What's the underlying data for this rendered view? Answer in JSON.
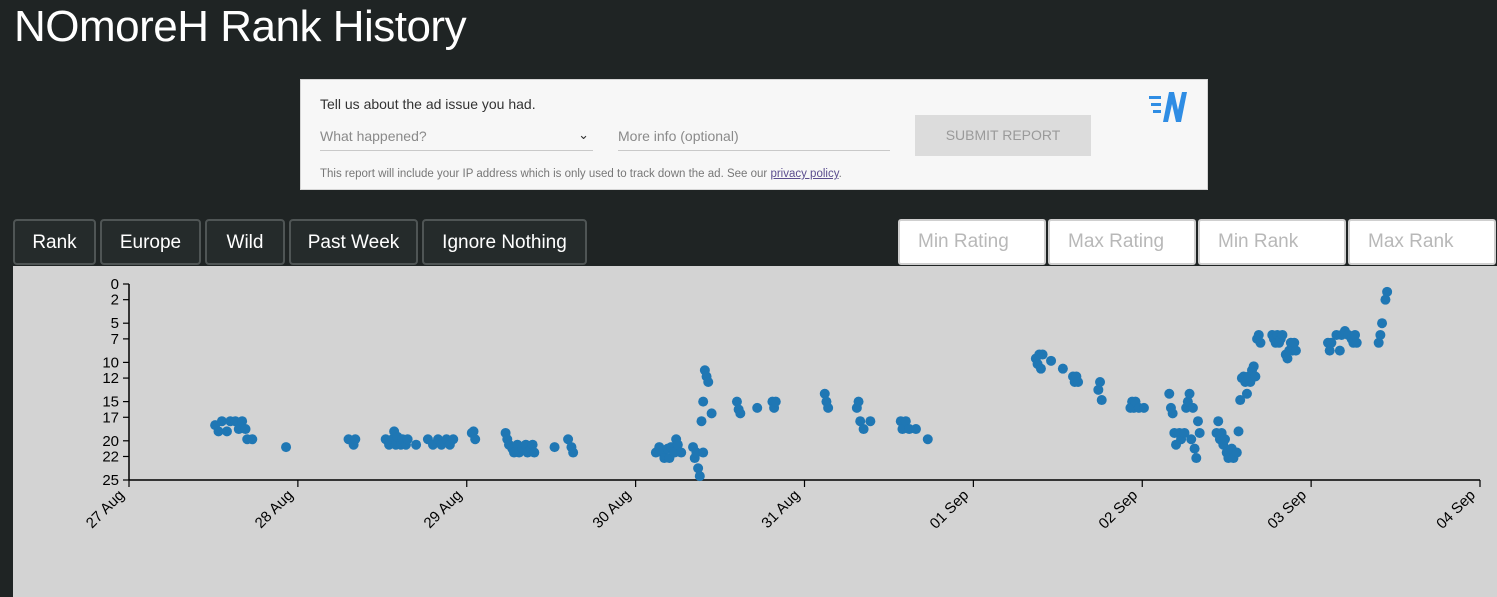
{
  "page": {
    "title": "NOmoreH Rank History"
  },
  "ad_report": {
    "heading": "Tell us about the ad issue you had.",
    "select_placeholder": "What happened?",
    "more_info_placeholder": "More info (optional)",
    "submit_label": "SUBMIT REPORT",
    "note_text": "This report will include your IP address which is only used to track down the ad. See our ",
    "privacy_link": "privacy policy",
    "note_end": ".",
    "logo_icon": "brand-n-logo",
    "logo_color": "#2f8de4"
  },
  "controls": {
    "buttons": [
      "Rank",
      "Europe",
      "Wild",
      "Past Week",
      "Ignore Nothing"
    ],
    "filters": [
      "Min Rating",
      "Max Rating",
      "Min Rank",
      "Max Rank"
    ]
  },
  "colors": {
    "background": "#1f2424",
    "chart_bg": "#d3d3d3",
    "point": "#1f77b4"
  },
  "chart_data": {
    "type": "scatter",
    "title": "",
    "xlabel": "",
    "ylabel": "",
    "y_reversed": true,
    "ylim": [
      0,
      25
    ],
    "y_ticks": [
      "0",
      "2",
      "5",
      "7",
      "10",
      "12",
      "15",
      "17",
      "20",
      "22",
      "25"
    ],
    "x_ticks": [
      "27 Aug",
      "28 Aug",
      "29 Aug",
      "30 Aug",
      "31 Aug",
      "01 Sep",
      "02 Sep",
      "03 Sep",
      "04 Sep"
    ],
    "x_unit": "days since 27 Aug",
    "series": [
      {
        "color": "#1f77b4",
        "points": [
          [
            0.51,
            18
          ],
          [
            0.53,
            18.8
          ],
          [
            0.55,
            17.5
          ],
          [
            0.58,
            18.8
          ],
          [
            0.6,
            17.5
          ],
          [
            0.63,
            17.5
          ],
          [
            0.65,
            18.5
          ],
          [
            0.67,
            17.5
          ],
          [
            0.69,
            18.5
          ],
          [
            0.7,
            19.8
          ],
          [
            0.73,
            19.8
          ],
          [
            0.93,
            20.8
          ],
          [
            1.3,
            19.8
          ],
          [
            1.33,
            20.5
          ],
          [
            1.34,
            19.8
          ],
          [
            1.52,
            19.8
          ],
          [
            1.54,
            20.5
          ],
          [
            1.56,
            19.8
          ],
          [
            1.57,
            18.8
          ],
          [
            1.58,
            20.5
          ],
          [
            1.59,
            19.5
          ],
          [
            1.61,
            20.5
          ],
          [
            1.62,
            19.8
          ],
          [
            1.64,
            20.5
          ],
          [
            1.65,
            19.8
          ],
          [
            1.7,
            20.5
          ],
          [
            1.77,
            19.8
          ],
          [
            1.8,
            20.5
          ],
          [
            1.83,
            19.8
          ],
          [
            1.85,
            20.5
          ],
          [
            1.88,
            19.8
          ],
          [
            1.9,
            20.5
          ],
          [
            1.92,
            19.8
          ],
          [
            2.03,
            19
          ],
          [
            2.04,
            18.8
          ],
          [
            2.05,
            19.8
          ],
          [
            2.23,
            19
          ],
          [
            2.24,
            19.8
          ],
          [
            2.25,
            20.5
          ],
          [
            2.27,
            21
          ],
          [
            2.28,
            21.5
          ],
          [
            2.3,
            20.5
          ],
          [
            2.31,
            21.5
          ],
          [
            2.33,
            21
          ],
          [
            2.35,
            20.5
          ],
          [
            2.36,
            21.5
          ],
          [
            2.38,
            21
          ],
          [
            2.39,
            20.5
          ],
          [
            2.4,
            21.5
          ],
          [
            2.52,
            20.8
          ],
          [
            2.6,
            19.8
          ],
          [
            2.62,
            20.8
          ],
          [
            2.63,
            21.5
          ],
          [
            3.12,
            21.5
          ],
          [
            3.14,
            20.8
          ],
          [
            3.16,
            21.5
          ],
          [
            3.17,
            22.2
          ],
          [
            3.19,
            21
          ],
          [
            3.2,
            22.2
          ],
          [
            3.21,
            20.8
          ],
          [
            3.23,
            21.5
          ],
          [
            3.24,
            19.8
          ],
          [
            3.25,
            20.5
          ],
          [
            3.27,
            21.5
          ],
          [
            3.34,
            20.8
          ],
          [
            3.35,
            22.2
          ],
          [
            3.36,
            21.5
          ],
          [
            3.37,
            23.5
          ],
          [
            3.38,
            24.5
          ],
          [
            3.4,
            21.5
          ],
          [
            3.39,
            17.5
          ],
          [
            3.4,
            15
          ],
          [
            3.41,
            11
          ],
          [
            3.42,
            11.8
          ],
          [
            3.43,
            12.5
          ],
          [
            3.45,
            16.5
          ],
          [
            3.6,
            15
          ],
          [
            3.61,
            16
          ],
          [
            3.62,
            16.5
          ],
          [
            3.72,
            15.8
          ],
          [
            3.81,
            15
          ],
          [
            3.82,
            15.8
          ],
          [
            3.83,
            15
          ],
          [
            4.12,
            14
          ],
          [
            4.13,
            15
          ],
          [
            4.14,
            15.8
          ],
          [
            4.31,
            15.8
          ],
          [
            4.32,
            15
          ],
          [
            4.33,
            17.5
          ],
          [
            4.35,
            18.5
          ],
          [
            4.39,
            17.5
          ],
          [
            4.57,
            17.5
          ],
          [
            4.58,
            18.5
          ],
          [
            4.6,
            17.5
          ],
          [
            4.62,
            18.5
          ],
          [
            4.66,
            18.5
          ],
          [
            4.73,
            19.8
          ],
          [
            5.37,
            9.5
          ],
          [
            5.38,
            10.2
          ],
          [
            5.39,
            9
          ],
          [
            5.4,
            10.8
          ],
          [
            5.41,
            9
          ],
          [
            5.46,
            9.8
          ],
          [
            5.53,
            10.8
          ],
          [
            5.59,
            11.8
          ],
          [
            5.6,
            12.5
          ],
          [
            5.61,
            11.8
          ],
          [
            5.62,
            12.5
          ],
          [
            5.74,
            13.5
          ],
          [
            5.75,
            12.5
          ],
          [
            5.76,
            14.8
          ],
          [
            5.93,
            15.8
          ],
          [
            5.94,
            15
          ],
          [
            5.95,
            15.8
          ],
          [
            5.96,
            15
          ],
          [
            5.98,
            15.8
          ],
          [
            6.01,
            15.8
          ],
          [
            6.16,
            14
          ],
          [
            6.17,
            15.8
          ],
          [
            6.18,
            16.5
          ],
          [
            6.19,
            19
          ],
          [
            6.2,
            20.5
          ],
          [
            6.22,
            19
          ],
          [
            6.23,
            19.8
          ],
          [
            6.25,
            19
          ],
          [
            6.26,
            15.8
          ],
          [
            6.27,
            15
          ],
          [
            6.28,
            14
          ],
          [
            6.29,
            19.8
          ],
          [
            6.3,
            15.8
          ],
          [
            6.31,
            21
          ],
          [
            6.32,
            22.2
          ],
          [
            6.33,
            17.5
          ],
          [
            6.34,
            19
          ],
          [
            6.44,
            19
          ],
          [
            6.45,
            17.5
          ],
          [
            6.46,
            19.8
          ],
          [
            6.47,
            19
          ],
          [
            6.48,
            20.5
          ],
          [
            6.49,
            19.8
          ],
          [
            6.5,
            21.5
          ],
          [
            6.51,
            22.2
          ],
          [
            6.53,
            21
          ],
          [
            6.54,
            22.2
          ],
          [
            6.56,
            21.5
          ],
          [
            6.57,
            18.8
          ],
          [
            6.58,
            14.8
          ],
          [
            6.59,
            12
          ],
          [
            6.6,
            11.8
          ],
          [
            6.61,
            12.5
          ],
          [
            6.62,
            14
          ],
          [
            6.63,
            11.8
          ],
          [
            6.64,
            12.5
          ],
          [
            6.65,
            11
          ],
          [
            6.66,
            10.5
          ],
          [
            6.67,
            11.8
          ],
          [
            6.68,
            7
          ],
          [
            6.69,
            6.5
          ],
          [
            6.7,
            7.5
          ],
          [
            6.77,
            6.5
          ],
          [
            6.78,
            7
          ],
          [
            6.79,
            7.5
          ],
          [
            6.8,
            6.5
          ],
          [
            6.81,
            7.5
          ],
          [
            6.82,
            7
          ],
          [
            6.83,
            6.5
          ],
          [
            6.85,
            9
          ],
          [
            6.86,
            9.5
          ],
          [
            6.87,
            8.5
          ],
          [
            6.88,
            7.5
          ],
          [
            6.89,
            8.5
          ],
          [
            6.9,
            7.5
          ],
          [
            6.91,
            8.5
          ],
          [
            7.1,
            7.5
          ],
          [
            7.11,
            8.5
          ],
          [
            7.12,
            7.5
          ],
          [
            7.15,
            6.5
          ],
          [
            7.17,
            8.5
          ],
          [
            7.18,
            6.5
          ],
          [
            7.2,
            6
          ],
          [
            7.22,
            6.5
          ],
          [
            7.24,
            7
          ],
          [
            7.25,
            7.5
          ],
          [
            7.26,
            6.5
          ],
          [
            7.27,
            7.5
          ],
          [
            7.4,
            7.5
          ],
          [
            7.41,
            6.5
          ],
          [
            7.42,
            5
          ],
          [
            7.44,
            2
          ],
          [
            7.45,
            1
          ]
        ]
      }
    ]
  }
}
